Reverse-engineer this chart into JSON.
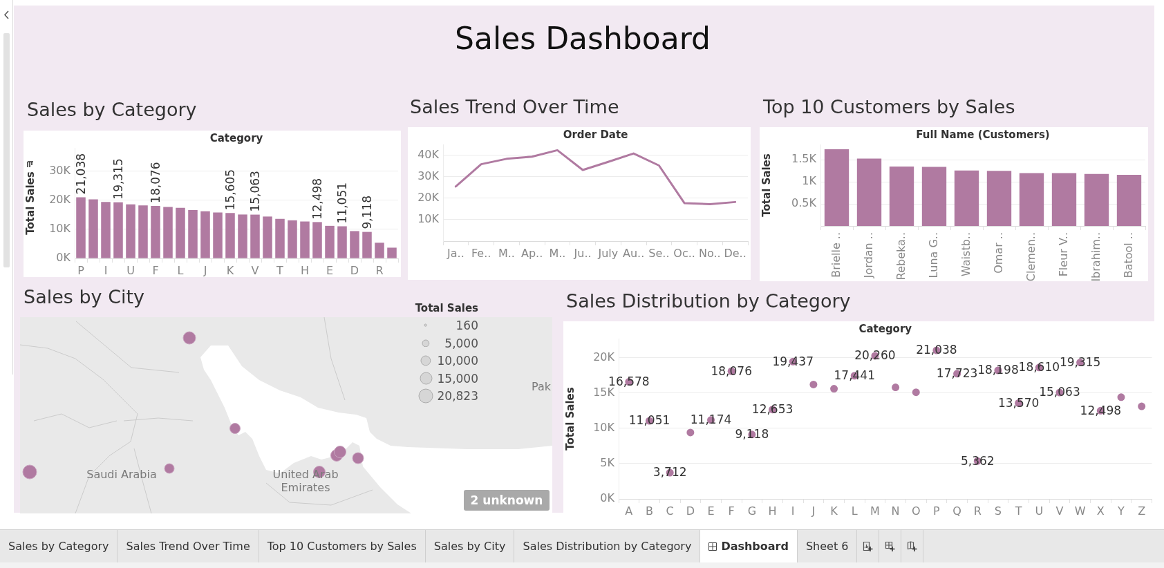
{
  "chart_data": [
    {
      "type": "other",
      "title": "Sales Dashboard"
    },
    {
      "type": "bar",
      "title": "Sales by Category",
      "xlabel": "Category",
      "ylabel": "Total Sales",
      "categories": [
        "P",
        null,
        "I",
        null,
        "U",
        null,
        "F",
        null,
        "L",
        null,
        "J",
        null,
        "K",
        null,
        "V",
        null,
        "T",
        null,
        "H",
        null,
        "E",
        null,
        "D",
        null,
        "R",
        null
      ],
      "values": [
        21038,
        20300,
        19400,
        19315,
        18600,
        18200,
        18076,
        17700,
        17400,
        16600,
        16200,
        15800,
        15605,
        15100,
        15063,
        14400,
        13600,
        13100,
        12700,
        12498,
        11200,
        11051,
        9400,
        9118,
        5400,
        3700
      ],
      "value_labels": [
        "21,038",
        null,
        null,
        "19,315",
        null,
        null,
        "18,076",
        null,
        null,
        null,
        null,
        null,
        "15,605",
        null,
        "15,063",
        null,
        null,
        null,
        null,
        "12,498",
        null,
        "11,051",
        null,
        "9,118",
        null,
        null
      ],
      "color": "#b07aa1",
      "ylim": [
        0,
        38000
      ],
      "yticks": [
        {
          "value": 0,
          "label": "0K"
        },
        {
          "value": 10000,
          "label": "10K"
        },
        {
          "value": 20000,
          "label": "20K"
        },
        {
          "value": 30000,
          "label": "30K"
        }
      ],
      "grid": "y"
    },
    {
      "type": "line",
      "title": "Sales Trend Over Time",
      "xlabel": "Order Date",
      "categories": [
        "Ja..",
        "Fe..",
        "M..",
        "Ap..",
        "M..",
        "Ju..",
        "July",
        "Au..",
        "Se..",
        "Oc..",
        "No..",
        "De.."
      ],
      "values": [
        25400,
        35800,
        38300,
        39300,
        42300,
        33100,
        36900,
        40800,
        35200,
        17700,
        17200,
        18200
      ],
      "color": "#b07aa1",
      "ylim": [
        0,
        45000
      ],
      "yticks": [
        {
          "value": 10000,
          "label": "10K"
        },
        {
          "value": 20000,
          "label": "20K"
        },
        {
          "value": 30000,
          "label": "30K"
        },
        {
          "value": 40000,
          "label": "40K"
        }
      ],
      "grid": "y"
    },
    {
      "type": "bar",
      "title": "Top 10 Customers by Sales",
      "xlabel": "Full Name (Customers)",
      "ylabel": "Total Sales",
      "categories": [
        "Brielle ..",
        "Jordan ..",
        "Rebeka..",
        "Luna G..",
        "Waistb..",
        "Omar ..",
        "Clemen..",
        "Fleur V..",
        "Ibrahim..",
        "Batool .."
      ],
      "values": [
        1740,
        1530,
        1350,
        1340,
        1260,
        1250,
        1200,
        1200,
        1180,
        1160
      ],
      "color": "#b07aa1",
      "ylim": [
        0,
        1850
      ],
      "yticks": [
        {
          "value": 500,
          "label": "0.5K"
        },
        {
          "value": 1000,
          "label": "1K"
        },
        {
          "value": 1500,
          "label": "1.5K"
        }
      ],
      "grid": "y"
    },
    {
      "type": "other",
      "title": "Sales by City",
      "legend_title": "Total Sales",
      "annotations": [
        "Saudi Arabia",
        "United Arab Emirates",
        "Pak",
        "2 unknown",
        "160",
        "5,000",
        "10,000",
        "15,000",
        "20,823"
      ]
    },
    {
      "type": "scatter",
      "title": "Sales Distribution by Category",
      "xlabel": "Category",
      "ylabel": "Total Sales",
      "categories": [
        "A",
        "B",
        "C",
        "D",
        "E",
        "F",
        "G",
        "H",
        "I",
        "J",
        "K",
        "L",
        "M",
        "N",
        "O",
        "P",
        "Q",
        "R",
        "S",
        "T",
        "U",
        "V",
        "W",
        "X",
        "Y",
        "Z"
      ],
      "values": [
        16578,
        11051,
        3712,
        9400,
        11174,
        18076,
        9118,
        12653,
        19437,
        16200,
        15600,
        17441,
        20260,
        15800,
        15100,
        21038,
        17723,
        5362,
        18198,
        13570,
        18610,
        15063,
        19315,
        12498,
        14400,
        13100
      ],
      "value_labels": [
        "16,578",
        "11,051",
        "3,712",
        null,
        "11,174",
        "18,076",
        "9,118",
        "12,653",
        "19,437",
        null,
        null,
        "17,441",
        "20,260",
        null,
        null,
        "21,038",
        "17,723",
        "5,362",
        "18,198",
        "13,570",
        "18,610",
        "15,063",
        "19,315",
        "12,498",
        null,
        null
      ],
      "color": "#b07aa1",
      "marker": "circle",
      "ylim": [
        0,
        22700
      ],
      "yticks": [
        {
          "value": 0,
          "label": "0K"
        },
        {
          "value": 5000,
          "label": "5K"
        },
        {
          "value": 10000,
          "label": "10K"
        },
        {
          "value": 15000,
          "label": "15K"
        },
        {
          "value": 20000,
          "label": "20K"
        }
      ],
      "grid": "y"
    },
    {
      "type": "other",
      "annotations": [
        "Sales by Category",
        "Sales Trend Over Time",
        "Top 10 Customers by Sales",
        "Sales by City",
        "Sales Distribution by Category",
        "Dashboard",
        "Sheet 6"
      ]
    }
  ]
}
